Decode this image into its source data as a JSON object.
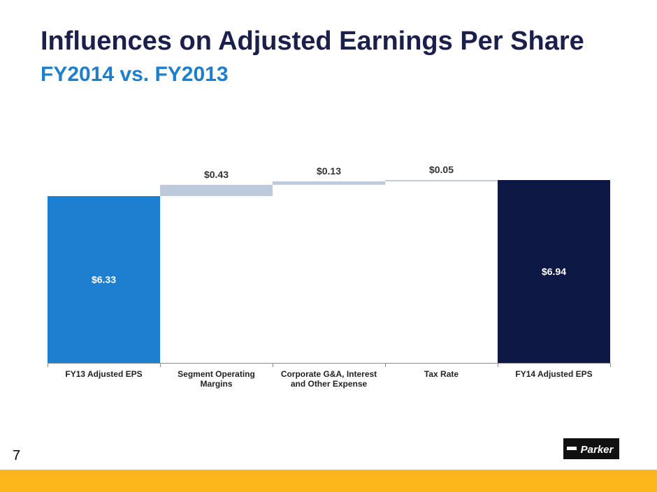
{
  "header": {
    "title": "Influences on Adjusted Earnings Per Share",
    "subtitle": "FY2014 vs. FY2013"
  },
  "colors": {
    "title": "#1b1f4b",
    "subtitle": "#1d7fcc",
    "start_bar": "#1e7fd0",
    "increase_bar": "#bccadb",
    "end_bar": "#0d1845",
    "footer_bar": "#fdb71a",
    "logo": "#111111"
  },
  "chart_data": {
    "type": "bar",
    "subtype": "waterfall",
    "categories": [
      [
        "FY13 Adjusted EPS"
      ],
      [
        "Segment Operating",
        "Margins"
      ],
      [
        "Corporate G&A, Interest",
        "and Other Expense"
      ],
      [
        "Tax Rate"
      ],
      [
        "FY14 Adjusted EPS"
      ]
    ],
    "values": [
      6.33,
      0.43,
      0.13,
      0.05,
      6.94
    ],
    "kinds": [
      "total",
      "increase",
      "increase",
      "increase",
      "total"
    ],
    "labels": [
      "$6.33",
      "$0.43",
      "$0.13",
      "$0.05",
      "$6.94"
    ],
    "ylim": [
      0,
      6.94
    ],
    "grid": false,
    "legend": "none"
  },
  "footer": {
    "page_number": "7",
    "logo_text": "Parker",
    "logo_icon": "parker-logo-icon"
  }
}
